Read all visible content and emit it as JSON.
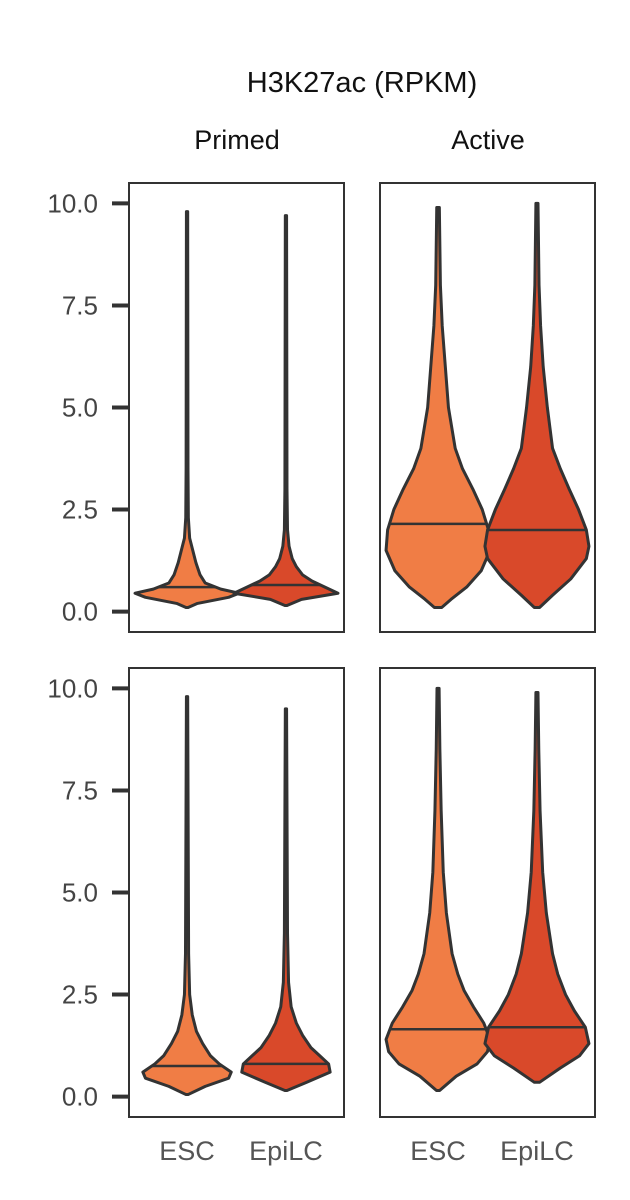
{
  "chart_data": {
    "type": "violin",
    "title": "H3K27ac (RPKM)",
    "columns": [
      "Primed",
      "Active"
    ],
    "categories": [
      "ESC",
      "EpiLC"
    ],
    "y_ticks": [
      "0.0",
      "2.5",
      "5.0",
      "7.5",
      "10.0"
    ],
    "ylim": [
      -0.5,
      10.5
    ],
    "grid": false,
    "colors": {
      "ESC": "#f07d45",
      "EpiLC": "#d9492a",
      "outline": "#333333"
    },
    "panels": [
      {
        "row": 0,
        "column": "Primed",
        "violins": [
          {
            "category": "ESC",
            "min": 0.1,
            "max": 9.8,
            "median": 0.6,
            "profile": [
              [
                0.1,
                0.02
              ],
              [
                0.2,
                0.2
              ],
              [
                0.35,
                0.8
              ],
              [
                0.45,
                1.0
              ],
              [
                0.55,
                0.65
              ],
              [
                0.7,
                0.35
              ],
              [
                0.9,
                0.25
              ],
              [
                1.2,
                0.17
              ],
              [
                1.5,
                0.11
              ],
              [
                1.8,
                0.05
              ],
              [
                2.3,
                0.025
              ],
              [
                3.5,
                0.018
              ],
              [
                9.8,
                0.012
              ]
            ]
          },
          {
            "category": "EpiLC",
            "min": 0.15,
            "max": 9.7,
            "median": 0.65,
            "profile": [
              [
                0.15,
                0.02
              ],
              [
                0.3,
                0.3
              ],
              [
                0.45,
                1.0
              ],
              [
                0.6,
                0.75
              ],
              [
                0.75,
                0.5
              ],
              [
                0.9,
                0.32
              ],
              [
                1.1,
                0.2
              ],
              [
                1.3,
                0.12
              ],
              [
                1.6,
                0.06
              ],
              [
                2.0,
                0.03
              ],
              [
                3.0,
                0.02
              ],
              [
                9.7,
                0.012
              ]
            ]
          }
        ]
      },
      {
        "row": 0,
        "column": "Active",
        "violins": [
          {
            "category": "ESC",
            "min": 0.1,
            "max": 9.9,
            "median": 2.15,
            "profile": [
              [
                0.1,
                0.07
              ],
              [
                0.3,
                0.25
              ],
              [
                0.6,
                0.55
              ],
              [
                1.0,
                0.83
              ],
              [
                1.5,
                1.0
              ],
              [
                2.0,
                0.97
              ],
              [
                2.5,
                0.85
              ],
              [
                3.0,
                0.67
              ],
              [
                3.5,
                0.47
              ],
              [
                4.0,
                0.33
              ],
              [
                5.0,
                0.2
              ],
              [
                6.0,
                0.14
              ],
              [
                7.0,
                0.08
              ],
              [
                8.0,
                0.045
              ],
              [
                9.9,
                0.025
              ]
            ]
          },
          {
            "category": "EpiLC",
            "min": 0.1,
            "max": 10.0,
            "median": 2.0,
            "profile": [
              [
                0.1,
                0.05
              ],
              [
                0.4,
                0.3
              ],
              [
                0.8,
                0.65
              ],
              [
                1.3,
                0.95
              ],
              [
                1.6,
                1.0
              ],
              [
                2.0,
                0.95
              ],
              [
                2.5,
                0.8
              ],
              [
                3.0,
                0.62
              ],
              [
                3.5,
                0.45
              ],
              [
                4.0,
                0.3
              ],
              [
                5.0,
                0.2
              ],
              [
                6.0,
                0.12
              ],
              [
                7.0,
                0.07
              ],
              [
                8.0,
                0.04
              ],
              [
                10.0,
                0.02
              ]
            ]
          }
        ]
      },
      {
        "row": 1,
        "column": "Primed",
        "violins": [
          {
            "category": "ESC",
            "min": 0.05,
            "max": 9.8,
            "median": 0.75,
            "profile": [
              [
                0.05,
                0.02
              ],
              [
                0.25,
                0.35
              ],
              [
                0.45,
                0.8
              ],
              [
                0.6,
                0.85
              ],
              [
                0.8,
                0.62
              ],
              [
                1.0,
                0.45
              ],
              [
                1.3,
                0.3
              ],
              [
                1.6,
                0.18
              ],
              [
                2.0,
                0.1
              ],
              [
                2.5,
                0.05
              ],
              [
                3.5,
                0.03
              ],
              [
                9.8,
                0.012
              ]
            ]
          },
          {
            "category": "EpiLC",
            "min": 0.15,
            "max": 9.5,
            "median": 0.8,
            "profile": [
              [
                0.15,
                0.02
              ],
              [
                0.35,
                0.4
              ],
              [
                0.6,
                0.85
              ],
              [
                0.8,
                0.82
              ],
              [
                1.0,
                0.65
              ],
              [
                1.2,
                0.48
              ],
              [
                1.5,
                0.32
              ],
              [
                1.8,
                0.2
              ],
              [
                2.2,
                0.1
              ],
              [
                2.8,
                0.05
              ],
              [
                4.0,
                0.03
              ],
              [
                9.5,
                0.012
              ]
            ]
          }
        ]
      },
      {
        "row": 1,
        "column": "Active",
        "violins": [
          {
            "category": "ESC",
            "min": 0.15,
            "max": 10.0,
            "median": 1.65,
            "profile": [
              [
                0.15,
                0.03
              ],
              [
                0.5,
                0.35
              ],
              [
                0.8,
                0.75
              ],
              [
                1.1,
                0.95
              ],
              [
                1.4,
                1.0
              ],
              [
                1.8,
                0.88
              ],
              [
                2.2,
                0.68
              ],
              [
                2.6,
                0.5
              ],
              [
                3.0,
                0.38
              ],
              [
                3.5,
                0.27
              ],
              [
                4.5,
                0.16
              ],
              [
                5.5,
                0.1
              ],
              [
                7.0,
                0.06
              ],
              [
                8.5,
                0.035
              ],
              [
                10.0,
                0.02
              ]
            ]
          },
          {
            "category": "EpiLC",
            "min": 0.35,
            "max": 9.9,
            "median": 1.7,
            "profile": [
              [
                0.35,
                0.05
              ],
              [
                0.7,
                0.45
              ],
              [
                1.0,
                0.82
              ],
              [
                1.3,
                1.0
              ],
              [
                1.7,
                0.93
              ],
              [
                2.1,
                0.72
              ],
              [
                2.5,
                0.55
              ],
              [
                3.0,
                0.4
              ],
              [
                3.5,
                0.3
              ],
              [
                4.5,
                0.18
              ],
              [
                5.5,
                0.11
              ],
              [
                7.0,
                0.06
              ],
              [
                8.5,
                0.035
              ],
              [
                9.9,
                0.02
              ]
            ]
          }
        ]
      }
    ]
  }
}
